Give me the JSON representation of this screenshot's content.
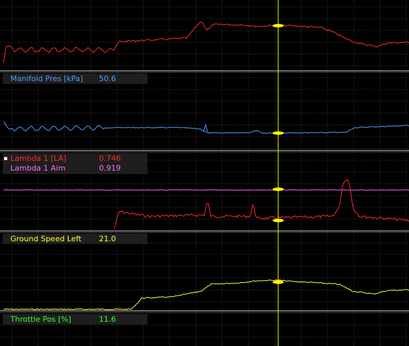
{
  "colors": {
    "background": "#000000",
    "grid": "#3a3a3a",
    "separator": "#c0c0c0",
    "cursor": "#ffff00",
    "label_bg": "#1e1e1e"
  },
  "channels": [
    {
      "name": "Manifold Pres [kPa]",
      "value": "50.6",
      "color": "#4f9cff"
    },
    {
      "name": "Lambda 1 [LA]",
      "value": "0.746",
      "color": "#ff2a2a",
      "marker": "▪"
    },
    {
      "name": "Lambda 1 Aim",
      "value": "0.919",
      "color": "#ff6cff"
    },
    {
      "name": "Ground Speed Left",
      "value": "21.0",
      "color": "#ffff33"
    },
    {
      "name": "Throttle Pos [%]",
      "value": "11.6",
      "color": "#33ff33"
    }
  ]
}
